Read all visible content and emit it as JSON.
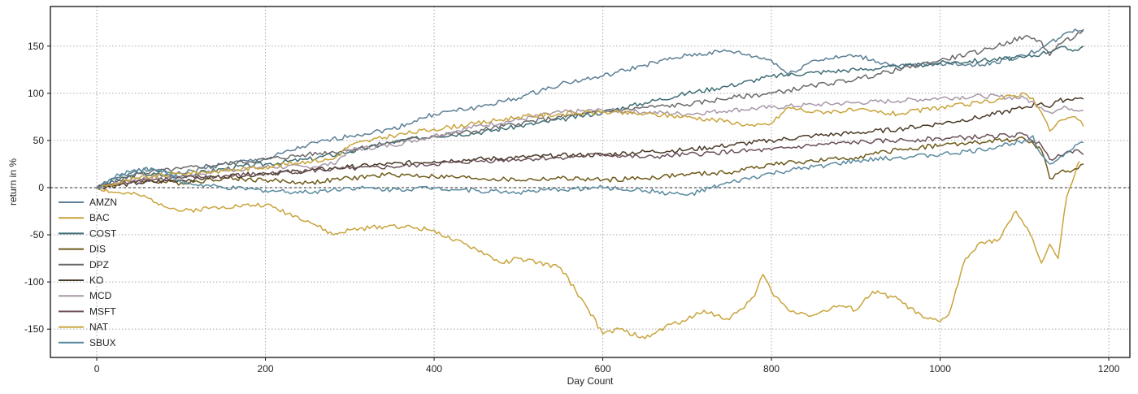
{
  "chart_data": {
    "type": "line",
    "title": "",
    "xlabel": "Day Count",
    "ylabel": "return in %",
    "xlim": [
      -55,
      1225
    ],
    "ylim": [
      -180,
      192
    ],
    "xticks": [
      0,
      200,
      400,
      600,
      800,
      1000,
      1200
    ],
    "yticks": [
      -150,
      -100,
      -50,
      0,
      50,
      100,
      150
    ],
    "grid": true,
    "zero_line": true,
    "legend_position": "left-middle",
    "series": [
      {
        "name": "AMZN",
        "color": "#5c7f95",
        "points": [
          [
            0,
            0
          ],
          [
            50,
            20
          ],
          [
            100,
            15
          ],
          [
            150,
            25
          ],
          [
            200,
            30
          ],
          [
            250,
            45
          ],
          [
            300,
            55
          ],
          [
            350,
            62
          ],
          [
            400,
            78
          ],
          [
            450,
            85
          ],
          [
            500,
            95
          ],
          [
            550,
            110
          ],
          [
            600,
            118
          ],
          [
            650,
            130
          ],
          [
            700,
            140
          ],
          [
            750,
            145
          ],
          [
            800,
            135
          ],
          [
            820,
            120
          ],
          [
            850,
            135
          ],
          [
            900,
            140
          ],
          [
            950,
            128
          ],
          [
            1000,
            132
          ],
          [
            1050,
            130
          ],
          [
            1100,
            140
          ],
          [
            1120,
            148
          ],
          [
            1140,
            158
          ],
          [
            1160,
            168
          ],
          [
            1170,
            166
          ]
        ]
      },
      {
        "name": "BAC",
        "color": "#c9a43c",
        "points": [
          [
            0,
            0
          ],
          [
            20,
            -5
          ],
          [
            50,
            -8
          ],
          [
            100,
            -25
          ],
          [
            150,
            -20
          ],
          [
            200,
            -18
          ],
          [
            250,
            -35
          ],
          [
            280,
            -50
          ],
          [
            300,
            -45
          ],
          [
            350,
            -40
          ],
          [
            400,
            -45
          ],
          [
            420,
            -55
          ],
          [
            450,
            -65
          ],
          [
            480,
            -80
          ],
          [
            500,
            -75
          ],
          [
            550,
            -85
          ],
          [
            580,
            -125
          ],
          [
            600,
            -155
          ],
          [
            620,
            -150
          ],
          [
            650,
            -160
          ],
          [
            680,
            -145
          ],
          [
            700,
            -140
          ],
          [
            720,
            -130
          ],
          [
            750,
            -140
          ],
          [
            780,
            -115
          ],
          [
            790,
            -92
          ],
          [
            800,
            -110
          ],
          [
            820,
            -130
          ],
          [
            850,
            -135
          ],
          [
            880,
            -125
          ],
          [
            900,
            -130
          ],
          [
            920,
            -110
          ],
          [
            950,
            -118
          ],
          [
            980,
            -138
          ],
          [
            1000,
            -142
          ],
          [
            1010,
            -135
          ],
          [
            1030,
            -75
          ],
          [
            1050,
            -58
          ],
          [
            1070,
            -55
          ],
          [
            1090,
            -25
          ],
          [
            1100,
            -40
          ],
          [
            1110,
            -55
          ],
          [
            1120,
            -80
          ],
          [
            1130,
            -60
          ],
          [
            1140,
            -75
          ],
          [
            1150,
            -10
          ],
          [
            1160,
            15
          ],
          [
            1165,
            28
          ]
        ]
      },
      {
        "name": "COST",
        "color": "#3e6d74",
        "points": [
          [
            0,
            0
          ],
          [
            50,
            15
          ],
          [
            100,
            12
          ],
          [
            150,
            20
          ],
          [
            200,
            25
          ],
          [
            250,
            30
          ],
          [
            300,
            38
          ],
          [
            350,
            48
          ],
          [
            400,
            55
          ],
          [
            450,
            58
          ],
          [
            500,
            65
          ],
          [
            550,
            72
          ],
          [
            600,
            80
          ],
          [
            650,
            90
          ],
          [
            700,
            100
          ],
          [
            750,
            108
          ],
          [
            800,
            118
          ],
          [
            850,
            122
          ],
          [
            900,
            125
          ],
          [
            950,
            128
          ],
          [
            1000,
            132
          ],
          [
            1050,
            135
          ],
          [
            1100,
            138
          ],
          [
            1120,
            142
          ],
          [
            1140,
            148
          ],
          [
            1160,
            146
          ],
          [
            1170,
            150
          ]
        ]
      },
      {
        "name": "DIS",
        "color": "#6e5a1a",
        "points": [
          [
            0,
            0
          ],
          [
            50,
            8
          ],
          [
            100,
            5
          ],
          [
            150,
            10
          ],
          [
            200,
            8
          ],
          [
            250,
            5
          ],
          [
            300,
            10
          ],
          [
            350,
            14
          ],
          [
            400,
            12
          ],
          [
            450,
            10
          ],
          [
            500,
            8
          ],
          [
            550,
            10
          ],
          [
            600,
            8
          ],
          [
            650,
            10
          ],
          [
            700,
            14
          ],
          [
            750,
            16
          ],
          [
            800,
            25
          ],
          [
            850,
            28
          ],
          [
            900,
            32
          ],
          [
            950,
            40
          ],
          [
            1000,
            45
          ],
          [
            1050,
            48
          ],
          [
            1100,
            52
          ],
          [
            1120,
            40
          ],
          [
            1130,
            10
          ],
          [
            1140,
            15
          ],
          [
            1160,
            20
          ],
          [
            1170,
            25
          ]
        ]
      },
      {
        "name": "DPZ",
        "color": "#6a6a6a",
        "points": [
          [
            0,
            0
          ],
          [
            50,
            15
          ],
          [
            100,
            20
          ],
          [
            150,
            25
          ],
          [
            200,
            30
          ],
          [
            250,
            35
          ],
          [
            300,
            40
          ],
          [
            350,
            48
          ],
          [
            400,
            55
          ],
          [
            450,
            60
          ],
          [
            500,
            68
          ],
          [
            550,
            75
          ],
          [
            600,
            80
          ],
          [
            650,
            85
          ],
          [
            700,
            88
          ],
          [
            750,
            95
          ],
          [
            800,
            100
          ],
          [
            850,
            108
          ],
          [
            900,
            115
          ],
          [
            950,
            125
          ],
          [
            1000,
            135
          ],
          [
            1050,
            145
          ],
          [
            1100,
            160
          ],
          [
            1120,
            155
          ],
          [
            1130,
            140
          ],
          [
            1140,
            152
          ],
          [
            1160,
            160
          ],
          [
            1170,
            168
          ]
        ]
      },
      {
        "name": "KO",
        "color": "#4a3a28",
        "points": [
          [
            0,
            0
          ],
          [
            50,
            5
          ],
          [
            100,
            8
          ],
          [
            150,
            12
          ],
          [
            200,
            15
          ],
          [
            250,
            18
          ],
          [
            300,
            22
          ],
          [
            350,
            25
          ],
          [
            400,
            28
          ],
          [
            450,
            30
          ],
          [
            500,
            32
          ],
          [
            550,
            34
          ],
          [
            600,
            35
          ],
          [
            650,
            38
          ],
          [
            700,
            40
          ],
          [
            750,
            45
          ],
          [
            800,
            50
          ],
          [
            850,
            55
          ],
          [
            900,
            58
          ],
          [
            950,
            62
          ],
          [
            1000,
            68
          ],
          [
            1050,
            75
          ],
          [
            1100,
            85
          ],
          [
            1120,
            90
          ],
          [
            1130,
            85
          ],
          [
            1140,
            92
          ],
          [
            1160,
            95
          ],
          [
            1170,
            94
          ]
        ]
      },
      {
        "name": "MCD",
        "color": "#a898a8",
        "points": [
          [
            0,
            0
          ],
          [
            50,
            10
          ],
          [
            100,
            12
          ],
          [
            150,
            18
          ],
          [
            200,
            22
          ],
          [
            250,
            22
          ],
          [
            280,
            25
          ],
          [
            300,
            40
          ],
          [
            350,
            45
          ],
          [
            400,
            55
          ],
          [
            450,
            65
          ],
          [
            500,
            72
          ],
          [
            550,
            80
          ],
          [
            600,
            82
          ],
          [
            650,
            80
          ],
          [
            700,
            78
          ],
          [
            750,
            82
          ],
          [
            800,
            85
          ],
          [
            850,
            88
          ],
          [
            900,
            90
          ],
          [
            950,
            92
          ],
          [
            1000,
            95
          ],
          [
            1050,
            97
          ],
          [
            1100,
            95
          ],
          [
            1120,
            85
          ],
          [
            1130,
            80
          ],
          [
            1150,
            85
          ],
          [
            1170,
            82
          ]
        ]
      },
      {
        "name": "MSFT",
        "color": "#6b5058",
        "points": [
          [
            0,
            0
          ],
          [
            50,
            8
          ],
          [
            100,
            10
          ],
          [
            150,
            12
          ],
          [
            200,
            15
          ],
          [
            250,
            18
          ],
          [
            300,
            20
          ],
          [
            350,
            22
          ],
          [
            400,
            25
          ],
          [
            450,
            28
          ],
          [
            500,
            30
          ],
          [
            550,
            32
          ],
          [
            600,
            35
          ],
          [
            650,
            32
          ],
          [
            700,
            35
          ],
          [
            750,
            38
          ],
          [
            800,
            40
          ],
          [
            850,
            45
          ],
          [
            900,
            48
          ],
          [
            950,
            50
          ],
          [
            1000,
            52
          ],
          [
            1050,
            54
          ],
          [
            1100,
            56
          ],
          [
            1120,
            45
          ],
          [
            1130,
            30
          ],
          [
            1140,
            35
          ],
          [
            1160,
            40
          ],
          [
            1170,
            35
          ]
        ]
      },
      {
        "name": "NAT",
        "color": "#c9a43c",
        "points": [
          [
            0,
            0
          ],
          [
            50,
            10
          ],
          [
            100,
            15
          ],
          [
            150,
            18
          ],
          [
            200,
            22
          ],
          [
            250,
            28
          ],
          [
            280,
            30
          ],
          [
            300,
            45
          ],
          [
            350,
            55
          ],
          [
            400,
            62
          ],
          [
            450,
            68
          ],
          [
            500,
            75
          ],
          [
            550,
            78
          ],
          [
            600,
            80
          ],
          [
            650,
            78
          ],
          [
            700,
            75
          ],
          [
            750,
            70
          ],
          [
            780,
            65
          ],
          [
            800,
            68
          ],
          [
            820,
            85
          ],
          [
            850,
            80
          ],
          [
            900,
            82
          ],
          [
            950,
            78
          ],
          [
            1000,
            85
          ],
          [
            1050,
            90
          ],
          [
            1100,
            100
          ],
          [
            1110,
            95
          ],
          [
            1120,
            80
          ],
          [
            1130,
            60
          ],
          [
            1140,
            70
          ],
          [
            1160,
            75
          ],
          [
            1170,
            65
          ]
        ]
      },
      {
        "name": "SBUX",
        "color": "#5a8aa0",
        "points": [
          [
            0,
            0
          ],
          [
            30,
            15
          ],
          [
            50,
            20
          ],
          [
            80,
            18
          ],
          [
            100,
            5
          ],
          [
            150,
            0
          ],
          [
            200,
            -3
          ],
          [
            250,
            -5
          ],
          [
            300,
            0
          ],
          [
            350,
            -2
          ],
          [
            400,
            0
          ],
          [
            450,
            -3
          ],
          [
            500,
            -5
          ],
          [
            550,
            -2
          ],
          [
            600,
            0
          ],
          [
            650,
            -3
          ],
          [
            700,
            -8
          ],
          [
            750,
            5
          ],
          [
            800,
            15
          ],
          [
            850,
            22
          ],
          [
            900,
            28
          ],
          [
            950,
            32
          ],
          [
            1000,
            35
          ],
          [
            1050,
            40
          ],
          [
            1100,
            50
          ],
          [
            1110,
            55
          ],
          [
            1120,
            35
          ],
          [
            1130,
            25
          ],
          [
            1140,
            30
          ],
          [
            1160,
            45
          ],
          [
            1170,
            48
          ]
        ]
      }
    ]
  }
}
